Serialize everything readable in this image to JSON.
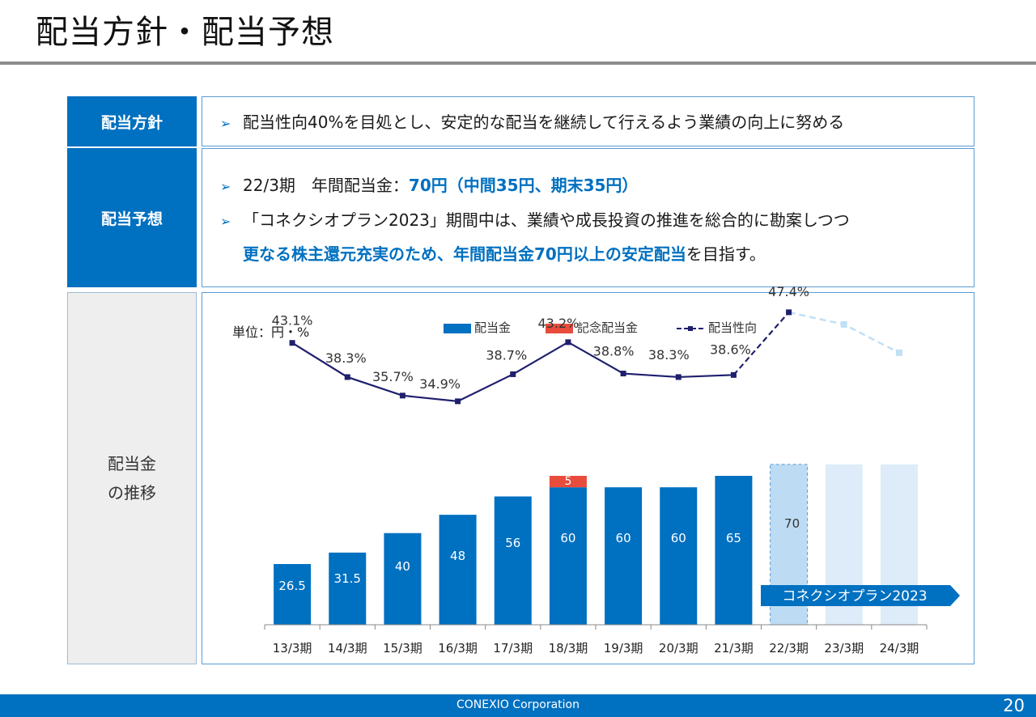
{
  "title": "配当方針・配当予想",
  "policy": {
    "label": "配当方針",
    "text": "配当性向40%を目処とし、安定的な配当を継続して行えるよう業績の向上に努める"
  },
  "forecast": {
    "label": "配当予想",
    "line1_prefix": "22/3期　年間配当金：",
    "line1_highlight": "70円（中間35円、期末35円）",
    "line2": "「コネクシオプラン2023」期間中は、業績や成長投資の推進を総合的に勘案しつつ",
    "line3_highlight": "更なる株主還元充実のため、年間配当金70円以上の安定配当",
    "line3_suffix": "を目指す。"
  },
  "history": {
    "label_line1": "配当金",
    "label_line2": "の推移"
  },
  "chart_data": {
    "type": "bar",
    "unit_label": "単位：円・%",
    "categories": [
      "13/3期",
      "14/3期",
      "15/3期",
      "16/3期",
      "17/3期",
      "18/3期",
      "19/3期",
      "20/3期",
      "21/3期",
      "22/3期",
      "23/3期",
      "24/3期"
    ],
    "series": [
      {
        "name": "配当金",
        "values": [
          26.5,
          31.5,
          40,
          48,
          56,
          60,
          60,
          60,
          65,
          70,
          70,
          70
        ]
      },
      {
        "name": "記念配当金",
        "values": [
          0,
          0,
          0,
          0,
          0,
          5,
          0,
          0,
          0,
          0,
          0,
          0
        ]
      },
      {
        "name": "配当性向",
        "values": [
          43.1,
          38.3,
          35.7,
          34.9,
          38.7,
          43.2,
          38.8,
          38.3,
          38.6,
          47.4,
          null,
          null
        ]
      }
    ],
    "bar_labels": [
      "26.5",
      "31.5",
      "40",
      "48",
      "56",
      "60",
      "60",
      "60",
      "65",
      "70",
      "",
      ""
    ],
    "special_labels": [
      "",
      "",
      "",
      "",
      "",
      "5",
      "",
      "",
      "",
      "",
      "",
      ""
    ],
    "payout_labels": [
      "43.1%",
      "38.3%",
      "35.7%",
      "34.9%",
      "38.7%",
      "43.2%",
      "38.8%",
      "38.3%",
      "38.6%",
      "47.4%",
      "",
      ""
    ],
    "ylim": [
      0,
      80
    ],
    "plan_label": "コネクシオプラン2023",
    "colors": {
      "dividend": "#0070c0",
      "commemorative": "#e74c3c",
      "payout": "#1f1f6e",
      "forecast": "#bddcf3",
      "future": "#ddecf8"
    }
  },
  "footer": {
    "corp": "CONEXIO Corporation",
    "page": "20"
  }
}
